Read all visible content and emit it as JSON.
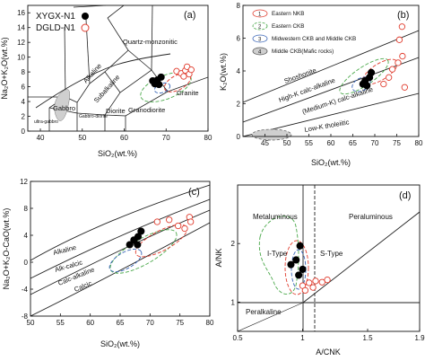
{
  "figure": {
    "panels": [
      "(a)",
      "(b)",
      "(c)",
      "(d)"
    ]
  },
  "chart_data": [
    {
      "panel": "(a)",
      "type": "scatter",
      "title": "",
      "xlabel": "SiO₂(wt.%)",
      "ylabel": "Na₂O+K₂O(wt.%)",
      "xlim": [
        37,
        80
      ],
      "ylim": [
        0,
        17
      ],
      "xticks": [
        40,
        50,
        60,
        70,
        80
      ],
      "yticks": [
        0,
        2,
        4,
        6,
        8,
        10,
        12,
        14,
        16
      ],
      "legend": [
        "XYGX-N1",
        "DGLD-N1"
      ],
      "field_labels": [
        "Quartz-monzonitic",
        "Alkaline",
        "Subalkaline",
        "Granite",
        "Gabbro",
        "Gabbro-diorite",
        "Diorite",
        "Granodiorite",
        "ultra-gabbro"
      ],
      "series": [
        {
          "name": "XYGX-N1",
          "marker": "filled-circle",
          "color": "#000000",
          "points": [
            [
              66.8,
              6.8
            ],
            [
              67.3,
              6.4
            ],
            [
              67.9,
              6.9
            ],
            [
              68.3,
              6.3
            ],
            [
              68.8,
              7.3
            ]
          ]
        },
        {
          "name": "DGLD-N1",
          "marker": "open-circle",
          "color": "#e03c2e",
          "points": [
            [
              72.5,
              8.1
            ],
            [
              73.6,
              7.8
            ],
            [
              74.2,
              7.4
            ],
            [
              74.6,
              8.2
            ],
            [
              75.0,
              8.7
            ],
            [
              75.5,
              7.7
            ],
            [
              76.0,
              8.3
            ]
          ]
        }
      ]
    },
    {
      "panel": "(b)",
      "type": "scatter",
      "xlabel": "SiO₂(wt.%)",
      "ylabel": "K₂O(wt.%)",
      "xlim": [
        40,
        80
      ],
      "ylim": [
        0,
        8
      ],
      "xticks": [
        45,
        50,
        55,
        60,
        65,
        70,
        75,
        80
      ],
      "yticks": [
        0,
        2,
        4,
        6,
        8
      ],
      "legend": [
        "Eastern NKB",
        "Eastern CKB",
        "Midwestern CKB and Middle CKB",
        "Middle CKB(Mafic rocks)"
      ],
      "legend_numbers": [
        "1",
        "2",
        "3",
        "4"
      ],
      "field_labels": [
        "Shoshonite",
        "High-K calc-alkaline",
        "(Medium-K) calc-alkaline",
        "Low-K tholeiitic"
      ],
      "series": [
        {
          "name": "XYGX-N1",
          "marker": "filled-circle",
          "color": "#000000",
          "points": [
            [
              67.3,
              3.2
            ],
            [
              67.8,
              3.4
            ],
            [
              68.2,
              3.1
            ],
            [
              68.8,
              3.6
            ],
            [
              69.2,
              3.9
            ]
          ]
        },
        {
          "name": "DGLD-N1",
          "marker": "open-circle",
          "color": "#e03c2e",
          "points": [
            [
              72.0,
              3.2
            ],
            [
              73.2,
              3.6
            ],
            [
              74.0,
              4.1
            ],
            [
              75.3,
              4.5
            ],
            [
              76.3,
              4.9
            ],
            [
              76.8,
              3.0
            ],
            [
              75.6,
              5.9
            ],
            [
              76.2,
              6.7
            ]
          ]
        }
      ]
    },
    {
      "panel": "(c)",
      "type": "scatter",
      "xlabel": "SiO₂(wt.%)",
      "ylabel": "Na₂O+K₂O-CaO(wt.%)",
      "xlim": [
        50,
        80
      ],
      "ylim": [
        -8,
        12
      ],
      "xticks": [
        50,
        55,
        60,
        65,
        70,
        75,
        80
      ],
      "yticks": [
        -8,
        -4,
        0,
        4,
        8,
        12
      ],
      "field_labels": [
        "Alkaline",
        "Alk-calcic",
        "Calc-alkaline",
        "Calcic"
      ],
      "series": [
        {
          "name": "XYGX-N1",
          "marker": "filled-circle",
          "color": "#000000",
          "points": [
            [
              66.6,
              2.6
            ],
            [
              67.3,
              3.3
            ],
            [
              67.9,
              2.6
            ],
            [
              68.0,
              3.8
            ],
            [
              68.5,
              4.6
            ]
          ]
        },
        {
          "name": "DGLD-N1",
          "marker": "open-circle",
          "color": "#e03c2e",
          "points": [
            [
              71.2,
              6.0
            ],
            [
              73.2,
              6.3
            ],
            [
              74.7,
              5.4
            ],
            [
              75.8,
              5.0
            ],
            [
              76.6,
              6.7
            ],
            [
              76.8,
              6.0
            ]
          ]
        }
      ]
    },
    {
      "panel": "(d)",
      "type": "scatter",
      "xlabel": "A/CNK",
      "ylabel": "A/NK",
      "xlim": [
        0.5,
        1.9
      ],
      "ylim": [
        0.5,
        3.0
      ],
      "xticks": [
        0.5,
        1.0,
        1.5,
        1.9
      ],
      "xtick_labels": [
        "0.5",
        "1",
        "1.5",
        "1.9"
      ],
      "yticks": [
        1,
        2
      ],
      "field_labels": [
        "Metaluminous",
        "Peraluminous",
        "I-Type",
        "S-Type",
        "Peralkaline"
      ],
      "series": [
        {
          "name": "XYGX-N1",
          "marker": "filled-circle",
          "color": "#000000",
          "points": [
            [
              0.91,
              1.64
            ],
            [
              0.95,
              1.72
            ],
            [
              0.97,
              1.46
            ],
            [
              1.0,
              1.56
            ],
            [
              0.98,
              1.96
            ]
          ]
        },
        {
          "name": "DGLD-N1",
          "marker": "open-circle",
          "color": "#e03c2e",
          "points": [
            [
              1.0,
              1.28
            ],
            [
              1.05,
              1.33
            ],
            [
              1.08,
              1.25
            ],
            [
              1.1,
              1.36
            ],
            [
              1.15,
              1.34
            ],
            [
              1.19,
              1.38
            ],
            [
              1.02,
              1.2
            ]
          ]
        }
      ]
    }
  ]
}
